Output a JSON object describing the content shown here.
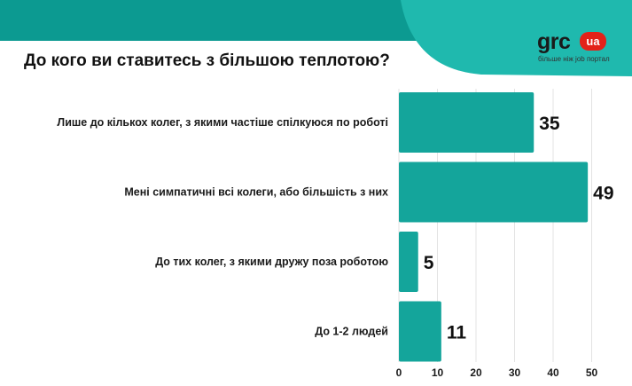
{
  "logo": {
    "text": "grc",
    "badge": "ua",
    "tagline": "більше ніж job портал"
  },
  "colors": {
    "bar": "#14a59b",
    "band": "#0c9a91",
    "deco": "#1fb9ae",
    "grid": "#e3e3e3",
    "logo_badge": "#e32219"
  },
  "chart_data": {
    "type": "bar",
    "orientation": "horizontal",
    "title": "До кого ви ставитесь з більшою теплотою?",
    "categories": [
      "Лише до кількох колег, з якими частіше спілкуюся по роботі",
      "Мені симпатичні всі колеги, або більшість з них",
      "До тих колег, з якими дружу поза роботою",
      "До 1-2 людей"
    ],
    "values": [
      35,
      49,
      5,
      11
    ],
    "xlim": [
      0,
      50
    ],
    "xticks": [
      "0",
      "10",
      "20",
      "30",
      "40",
      "50"
    ],
    "xlabel": "",
    "ylabel": "",
    "grid": true,
    "data_labels": true
  }
}
